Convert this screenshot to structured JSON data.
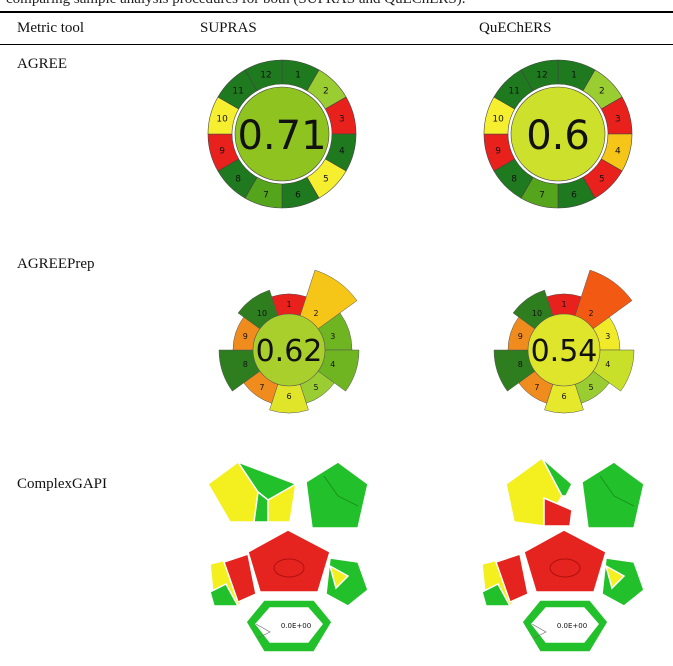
{
  "caption": "comparing sample analysis procedures for both (SUPRAS and QuEChERS).",
  "table": {
    "headers": [
      "Metric tool",
      "SUPRAS",
      "QuEChERS"
    ],
    "rows": [
      "AGREE",
      "AGREEPrep",
      "ComplexGAPI"
    ]
  },
  "colors": {
    "dark_green": "#1f7a1f",
    "green": "#55a51c",
    "light_green": "#9acd32",
    "yellow_green": "#cde02b",
    "yellow": "#f6ef2f",
    "gold": "#f5c518",
    "orange": "#f08c1e",
    "red": "#e8211d",
    "gapi_green": "#22c02a",
    "gapi_yellow": "#f4ef1f",
    "gapi_red": "#e5241f"
  },
  "agree": {
    "supras": {
      "score": "0.71",
      "center_color": "#8fc31f",
      "segments": [
        {
          "label": "1",
          "color": "#1f7a1f"
        },
        {
          "label": "2",
          "color": "#9acd32"
        },
        {
          "label": "3",
          "color": "#e8211d"
        },
        {
          "label": "4",
          "color": "#1f7a1f"
        },
        {
          "label": "5",
          "color": "#f6ef2f"
        },
        {
          "label": "6",
          "color": "#1f7a1f"
        },
        {
          "label": "7",
          "color": "#55a51c"
        },
        {
          "label": "8",
          "color": "#1f7a1f"
        },
        {
          "label": "9",
          "color": "#e8211d"
        },
        {
          "label": "10",
          "color": "#f6ef2f"
        },
        {
          "label": "11",
          "color": "#1f7a1f"
        },
        {
          "label": "12",
          "color": "#1f7a1f"
        }
      ]
    },
    "quechers": {
      "score": "0.6",
      "center_color": "#cde02b",
      "segments": [
        {
          "label": "1",
          "color": "#1f7a1f"
        },
        {
          "label": "2",
          "color": "#9acd32"
        },
        {
          "label": "3",
          "color": "#e8211d"
        },
        {
          "label": "4",
          "color": "#f5c518"
        },
        {
          "label": "5",
          "color": "#e8211d"
        },
        {
          "label": "6",
          "color": "#1f7a1f"
        },
        {
          "label": "7",
          "color": "#55a51c"
        },
        {
          "label": "8",
          "color": "#1f7a1f"
        },
        {
          "label": "9",
          "color": "#e8211d"
        },
        {
          "label": "10",
          "color": "#f6ef2f"
        },
        {
          "label": "11",
          "color": "#1f7a1f"
        },
        {
          "label": "12",
          "color": "#1f7a1f"
        }
      ]
    }
  },
  "agreeprep": {
    "supras": {
      "score": "0.62",
      "center_color": "#a8cf2c",
      "segments": [
        {
          "label": "1",
          "color": "#e8211d",
          "weight": 1
        },
        {
          "label": "2",
          "color": "#f5c518",
          "weight": 3
        },
        {
          "label": "3",
          "color": "#6fb522",
          "weight": 1.5
        },
        {
          "label": "4",
          "color": "#6fb522",
          "weight": 2
        },
        {
          "label": "5",
          "color": "#9acd32",
          "weight": 1
        },
        {
          "label": "6",
          "color": "#e0e52a",
          "weight": 1.5
        },
        {
          "label": "7",
          "color": "#f08c1e",
          "weight": 1
        },
        {
          "label": "8",
          "color": "#2e7d1f",
          "weight": 2
        },
        {
          "label": "9",
          "color": "#f08c1e",
          "weight": 1
        },
        {
          "label": "10",
          "color": "#2e7d1f",
          "weight": 1.5
        }
      ]
    },
    "quechers": {
      "score": "0.54",
      "center_color": "#dfe52b",
      "segments": [
        {
          "label": "1",
          "color": "#e8211d",
          "weight": 1
        },
        {
          "label": "2",
          "color": "#f25a14",
          "weight": 3
        },
        {
          "label": "3",
          "color": "#f0ea2a",
          "weight": 1
        },
        {
          "label": "4",
          "color": "#c8e02a",
          "weight": 2
        },
        {
          "label": "5",
          "color": "#9acd32",
          "weight": 1
        },
        {
          "label": "6",
          "color": "#e6e82b",
          "weight": 1.5
        },
        {
          "label": "7",
          "color": "#f08c1e",
          "weight": 1
        },
        {
          "label": "8",
          "color": "#2e7d1f",
          "weight": 2
        },
        {
          "label": "9",
          "color": "#f08c1e",
          "weight": 1
        },
        {
          "label": "10",
          "color": "#2e7d1f",
          "weight": 1.5
        }
      ]
    }
  },
  "complexgapi": {
    "supras": {
      "label": "0.0E+00",
      "center_color": "#e5241f"
    },
    "quechers": {
      "label": "0.0E+00",
      "center_color": "#e5241f"
    }
  }
}
